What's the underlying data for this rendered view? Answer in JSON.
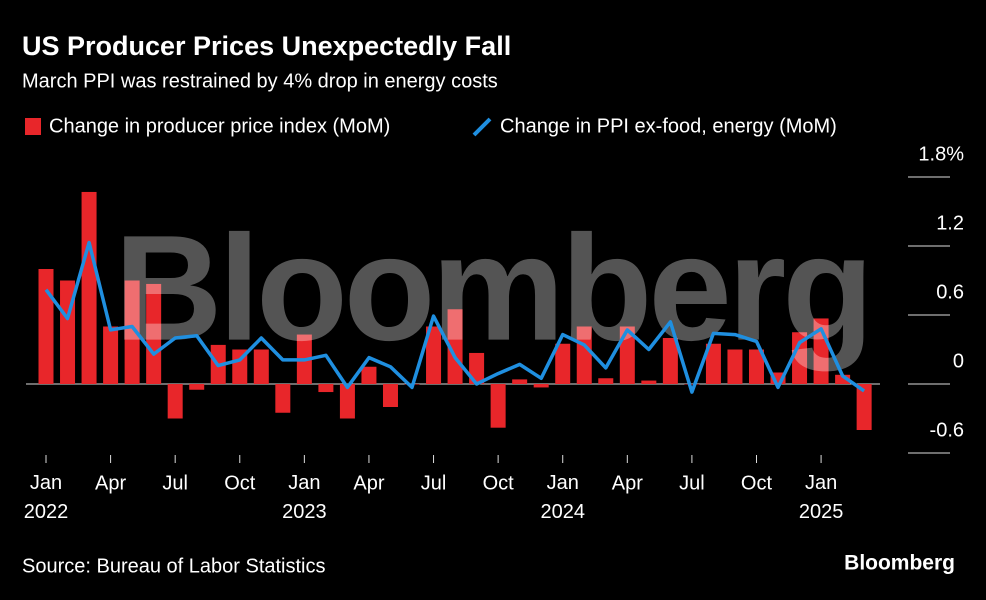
{
  "chart_data": {
    "type": "bar-line",
    "title": "US Producer Prices Unexpectedly Fall",
    "subtitle": "March PPI was restrained by 4% drop in energy costs",
    "source": "Source: Bureau of Labor Statistics",
    "brand": "Bloomberg",
    "watermark": "Bloomberg",
    "categories": [
      "Jan 2022",
      null,
      null,
      "Apr",
      null,
      null,
      "Jul",
      null,
      null,
      "Oct",
      null,
      null,
      "Jan 2023",
      null,
      null,
      "Apr",
      null,
      null,
      "Jul",
      null,
      null,
      "Oct",
      null,
      null,
      "Jan 2024",
      null,
      null,
      "Apr",
      null,
      null,
      "Jul",
      null,
      null,
      "Oct",
      null,
      null,
      "Jan 2025",
      null,
      null
    ],
    "series": [
      {
        "name": "Change in producer price index (MoM)",
        "kind": "bar",
        "color": "#e8262a",
        "values": [
          1.0,
          0.9,
          1.67,
          0.5,
          0.9,
          0.87,
          -0.3,
          -0.05,
          0.34,
          0.3,
          0.3,
          -0.25,
          0.43,
          -0.07,
          -0.3,
          0.15,
          -0.2,
          0.0,
          0.5,
          0.65,
          0.27,
          -0.38,
          0.04,
          -0.03,
          0.35,
          0.5,
          0.05,
          0.5,
          0.03,
          0.4,
          0.0,
          0.35,
          0.3,
          0.3,
          0.1,
          0.45,
          0.57,
          0.08,
          -0.4
        ]
      },
      {
        "name": "Change in PPI ex-food, energy (MoM)",
        "kind": "line",
        "color": "#1f8fe0",
        "values": [
          0.82,
          0.57,
          1.23,
          0.47,
          0.5,
          0.26,
          0.4,
          0.42,
          0.16,
          0.21,
          0.4,
          0.21,
          0.21,
          0.25,
          -0.03,
          0.23,
          0.15,
          -0.03,
          0.59,
          0.23,
          0.0,
          0.09,
          0.17,
          0.05,
          0.43,
          0.34,
          0.14,
          0.47,
          0.3,
          0.54,
          -0.07,
          0.44,
          0.43,
          0.37,
          -0.03,
          0.36,
          0.48,
          0.07,
          -0.06
        ]
      }
    ],
    "ylim": [
      -0.6,
      1.8
    ],
    "yticks": [
      -0.6,
      0,
      0.6,
      1.2,
      {
        "value": 1.8,
        "label": "1.8%"
      }
    ]
  }
}
